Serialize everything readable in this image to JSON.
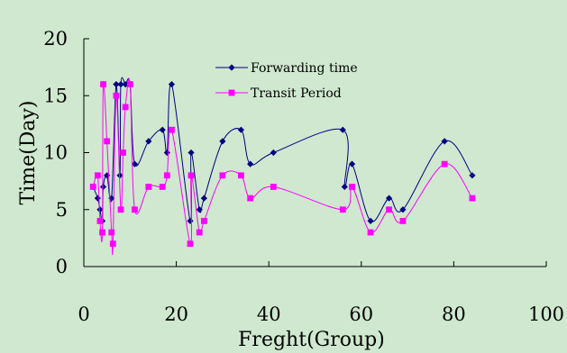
{
  "chart_data": {
    "type": "line",
    "xlabel": "Freght(Group)",
    "ylabel": "Time(Day)",
    "xlim": [
      0,
      100
    ],
    "ylim": [
      0,
      20
    ],
    "xticks": [
      0,
      20,
      40,
      60,
      80,
      100
    ],
    "yticks": [
      0,
      5,
      10,
      15,
      20
    ],
    "grid": false,
    "legend_position": "top-center",
    "series": [
      {
        "name": "Forwarding time",
        "color": "#000080",
        "marker": "diamond",
        "x": [
          2,
          3,
          3.5,
          4,
          4.2,
          5,
          6,
          7,
          7.8,
          8,
          9,
          10,
          11,
          14,
          17,
          18,
          19,
          23,
          23.2,
          25,
          26,
          30,
          34,
          36,
          41,
          56,
          56.4,
          58,
          62,
          66,
          69,
          78,
          84
        ],
        "y": [
          7,
          6,
          5,
          4,
          7,
          8,
          6,
          16,
          8,
          16,
          16,
          16,
          9,
          11,
          12,
          10,
          16,
          4,
          10,
          5,
          6,
          11,
          12,
          9,
          10,
          12,
          7,
          9,
          4,
          6,
          5,
          11,
          8
        ]
      },
      {
        "name": "Transit Period",
        "color": "#ff00ff",
        "marker": "square",
        "x": [
          2,
          3,
          3.5,
          4,
          4.2,
          5,
          6,
          6.3,
          7,
          8,
          8.5,
          9,
          10,
          11,
          14,
          17,
          18,
          19,
          23,
          23.2,
          25,
          26,
          30,
          34,
          36,
          41,
          56,
          58,
          62,
          66,
          69,
          78,
          84
        ],
        "y": [
          7,
          8,
          4,
          3,
          16,
          11,
          3,
          2,
          15,
          5,
          10,
          14,
          16,
          5,
          7,
          7,
          8,
          12,
          2,
          8,
          3,
          4,
          8,
          8,
          6,
          7,
          5,
          7,
          3,
          5,
          4,
          9,
          6
        ]
      }
    ]
  }
}
